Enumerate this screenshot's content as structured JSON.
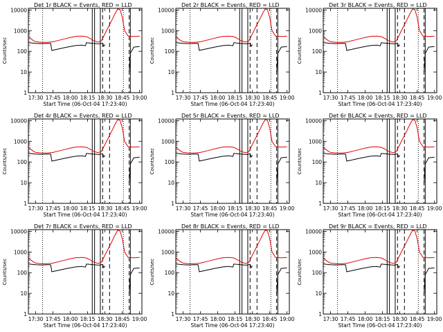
{
  "chart_data": {
    "type": "line",
    "x_unit": "time (UT), 06-Oct-04",
    "xlabel": "Start Time (06-Oct-04 17:23:40)",
    "ylabel": "Counts/sec",
    "x_ticks": [
      "17:30",
      "17:45",
      "18:00",
      "18:15",
      "18:30",
      "18:45",
      "19:00"
    ],
    "y_ticks": [
      "1",
      "10",
      "100",
      "1000",
      "10000"
    ],
    "y_scale": "log",
    "ylim": [
      1,
      12000
    ],
    "xlim": [
      "17:23:40",
      "19:02:00"
    ],
    "colors": {
      "events": "#000000",
      "lld": "#e00000"
    },
    "series_names": [
      "Events",
      "LLD"
    ],
    "panels": [
      {
        "title": "Det 1r BLACK = Events, RED = LLD"
      },
      {
        "title": "Det 2r BLACK = Events, RED = LLD"
      },
      {
        "title": "Det 3r BLACK = Events, RED = LLD"
      },
      {
        "title": "Det 4r BLACK = Events, RED = LLD"
      },
      {
        "title": "Det 5r BLACK = Events, RED = LLD"
      },
      {
        "title": "Det 6r BLACK = Events, RED = LLD"
      },
      {
        "title": "Det 7r BLACK = Events, RED = LLD"
      },
      {
        "title": "Det 8r BLACK = Events, RED = LLD"
      },
      {
        "title": "Det 9r BLACK = Events, RED = LLD"
      }
    ],
    "series": [
      {
        "name": "LLD",
        "points": [
          [
            "17:24",
            500
          ],
          [
            "17:26",
            400
          ],
          [
            "17:28",
            330
          ],
          [
            "17:30",
            290
          ],
          [
            "17:35",
            270
          ],
          [
            "17:40",
            270
          ],
          [
            "17:45",
            290
          ],
          [
            "17:50",
            340
          ],
          [
            "17:55",
            400
          ],
          [
            "18:00",
            470
          ],
          [
            "18:05",
            530
          ],
          [
            "18:10",
            540
          ],
          [
            "18:14",
            510
          ],
          [
            "18:17",
            420
          ],
          [
            "18:20",
            330
          ],
          [
            "18:24",
            280
          ],
          [
            "18:27",
            320
          ],
          [
            "18:30",
            700
          ],
          [
            "18:33",
            1500
          ],
          [
            "18:36",
            3200
          ],
          [
            "18:39",
            7000
          ],
          [
            "18:41",
            11000
          ],
          [
            "18:43",
            10500
          ],
          [
            "18:45",
            4500
          ],
          [
            "18:47",
            1000
          ],
          [
            "18:50",
            550
          ],
          [
            "18:55",
            520
          ],
          [
            "19:00",
            540
          ]
        ]
      },
      {
        "name": "Events",
        "points": [
          [
            "17:24",
            260
          ],
          [
            "17:27",
            250
          ],
          [
            "17:30",
            240
          ],
          [
            "17:35",
            235
          ],
          [
            "17:40",
            240
          ],
          [
            "17:43",
            240
          ],
          [
            "17:44",
            110
          ],
          [
            "17:50",
            130
          ],
          [
            "17:55",
            150
          ],
          [
            "18:00",
            170
          ],
          [
            "18:05",
            190
          ],
          [
            "18:10",
            200
          ],
          [
            "18:13",
            185
          ],
          [
            "18:14",
            260
          ],
          [
            "18:20",
            240
          ],
          [
            "18:25",
            230
          ],
          [
            "18:28",
            250
          ],
          [
            "18:29",
            175
          ],
          [
            "18:30",
            210
          ]
        ]
      },
      {
        "name": "Events",
        "points": [
          [
            "18:51",
            10
          ],
          [
            "18:52",
            80
          ],
          [
            "18:55",
            160
          ],
          [
            "19:00",
            170
          ]
        ]
      }
    ],
    "vertical_markers": [
      {
        "t": "17:36",
        "style": "dotted"
      },
      {
        "t": "18:19",
        "style": "solid"
      },
      {
        "t": "18:21",
        "style": "solid"
      },
      {
        "t": "18:26",
        "style": "solid"
      },
      {
        "t": "18:28",
        "style": "dashed"
      },
      {
        "t": "18:34",
        "style": "dashed"
      },
      {
        "t": "18:46",
        "style": "dotted"
      },
      {
        "t": "18:51",
        "style": "dashed"
      },
      {
        "t": "18:52",
        "style": "solid"
      }
    ]
  }
}
